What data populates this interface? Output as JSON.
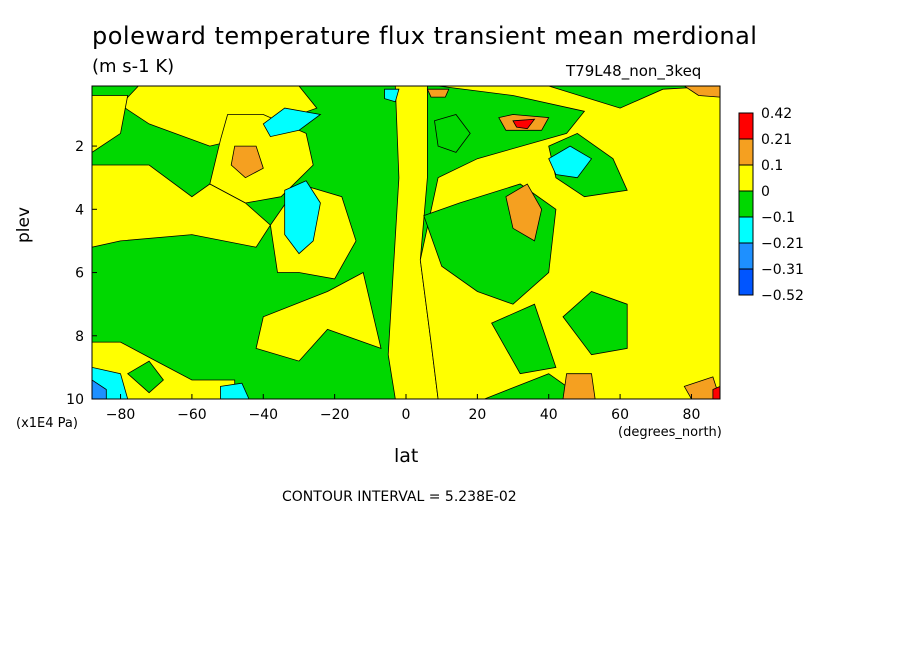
{
  "title": "poleward temperature flux transient mean merdional",
  "units": "(m s-1 K)",
  "dataset": "T79L48_non_3keq",
  "contour_note": "CONTOUR INTERVAL = 5.238E-02",
  "chart_data": {
    "type": "heatmap",
    "title": "poleward temperature flux transient mean merdional",
    "xlabel": "lat",
    "x_units": "(degrees_north)",
    "ylabel": "plev",
    "y_units": "(x1E4 Pa)",
    "xlim": [
      -88,
      88
    ],
    "ylim": [
      10,
      0.1
    ],
    "x_ticks": [
      -80,
      -60,
      -40,
      -20,
      0,
      20,
      40,
      60,
      80
    ],
    "y_ticks": [
      2,
      4,
      6,
      8,
      10
    ],
    "colorbar": {
      "labels": [
        "0.42",
        "0.21",
        "0.1",
        "0",
        "−0.1",
        "−0.21",
        "−0.31",
        "−0.52"
      ],
      "colors": [
        "#ff0000",
        "#f5a020",
        "#ffff00",
        "#00d800",
        "#00ffff",
        "#1e90ff",
        "#0055ff"
      ]
    },
    "regions": [
      {
        "color": "#ffff00",
        "points": [
          [
            -75,
            0.1
          ],
          [
            -30,
            0.1
          ],
          [
            -25,
            0.8
          ],
          [
            -35,
            1.2
          ],
          [
            -40,
            1.6
          ],
          [
            -55,
            2.0
          ],
          [
            -72,
            1.3
          ],
          [
            -80,
            0.7
          ]
        ]
      },
      {
        "color": "#ffff00",
        "points": [
          [
            -88,
            0.4
          ],
          [
            -78,
            0.4
          ],
          [
            -80,
            1.6
          ],
          [
            -88,
            2.2
          ]
        ]
      },
      {
        "color": "#ffff00",
        "points": [
          [
            -50,
            1.0
          ],
          [
            -40,
            1.0
          ],
          [
            -28,
            1.6
          ],
          [
            -26,
            2.6
          ],
          [
            -35,
            3.6
          ],
          [
            -45,
            3.8
          ],
          [
            -55,
            3.2
          ],
          [
            -52,
            1.8
          ]
        ]
      },
      {
        "color": "#ffff00",
        "points": [
          [
            -55,
            3.2
          ],
          [
            -45,
            3.8
          ],
          [
            -38,
            4.5
          ],
          [
            -42,
            5.2
          ],
          [
            -60,
            4.8
          ],
          [
            -80,
            5.0
          ],
          [
            -88,
            5.2
          ],
          [
            -88,
            2.6
          ],
          [
            -72,
            2.6
          ],
          [
            -60,
            3.6
          ]
        ]
      },
      {
        "color": "#ffff00",
        "points": [
          [
            -38,
            4.5
          ],
          [
            -30,
            3.2
          ],
          [
            -18,
            3.6
          ],
          [
            -14,
            5.0
          ],
          [
            -20,
            6.2
          ],
          [
            -30,
            6.0
          ],
          [
            -36,
            6.0
          ]
        ]
      },
      {
        "color": "#ffff00",
        "points": [
          [
            -22,
            6.6
          ],
          [
            -12,
            6.0
          ],
          [
            -7,
            8.4
          ],
          [
            -22,
            7.8
          ],
          [
            -30,
            8.8
          ],
          [
            -42,
            8.4
          ],
          [
            -40,
            7.4
          ]
        ]
      },
      {
        "color": "#ffff00",
        "points": [
          [
            -3,
            0.1
          ],
          [
            6,
            0.1
          ],
          [
            6,
            3.0
          ],
          [
            4,
            5.6
          ],
          [
            7,
            8.2
          ],
          [
            9,
            10
          ],
          [
            -3,
            10
          ],
          [
            -5,
            8.6
          ],
          [
            -2,
            3.0
          ]
        ]
      },
      {
        "color": "#ffff00",
        "points": [
          [
            9,
            0.1
          ],
          [
            40,
            0.1
          ],
          [
            60,
            0.8
          ],
          [
            72,
            0.2
          ],
          [
            88,
            0.1
          ],
          [
            88,
            10
          ],
          [
            50,
            10
          ],
          [
            40,
            9.2
          ],
          [
            22,
            10
          ],
          [
            9,
            10
          ],
          [
            7,
            8.2
          ],
          [
            4,
            5.6
          ],
          [
            9,
            3.0
          ],
          [
            20,
            2.4
          ],
          [
            45,
            1.6
          ],
          [
            50,
            0.9
          ],
          [
            30,
            0.4
          ]
        ]
      },
      {
        "color": "#ffff00",
        "points": [
          [
            -88,
            8.2
          ],
          [
            -80,
            8.2
          ],
          [
            -70,
            8.8
          ],
          [
            -60,
            9.4
          ],
          [
            -48,
            9.4
          ],
          [
            -48,
            10
          ],
          [
            -88,
            10
          ]
        ]
      },
      {
        "color": "#00d800",
        "points": [
          [
            5,
            4.2
          ],
          [
            15,
            3.8
          ],
          [
            32,
            3.2
          ],
          [
            42,
            4.0
          ],
          [
            40,
            6.0
          ],
          [
            30,
            7.0
          ],
          [
            20,
            6.6
          ],
          [
            10,
            5.8
          ]
        ]
      },
      {
        "color": "#00d800",
        "points": [
          [
            24,
            7.6
          ],
          [
            36,
            7.0
          ],
          [
            42,
            9.0
          ],
          [
            32,
            9.2
          ]
        ]
      },
      {
        "color": "#00d800",
        "points": [
          [
            44,
            7.4
          ],
          [
            52,
            6.6
          ],
          [
            62,
            7.0
          ],
          [
            62,
            8.4
          ],
          [
            52,
            8.6
          ]
        ]
      },
      {
        "color": "#00d800",
        "points": [
          [
            8,
            1.2
          ],
          [
            14,
            1.0
          ],
          [
            18,
            1.6
          ],
          [
            14,
            2.2
          ],
          [
            9,
            2.0
          ]
        ]
      },
      {
        "color": "#00d800",
        "points": [
          [
            40,
            2.0
          ],
          [
            48,
            1.6
          ],
          [
            58,
            2.4
          ],
          [
            62,
            3.4
          ],
          [
            50,
            3.6
          ],
          [
            42,
            3.0
          ]
        ]
      },
      {
        "color": "#00d800",
        "points": [
          [
            -78,
            9.2
          ],
          [
            -72,
            8.8
          ],
          [
            -68,
            9.4
          ],
          [
            -72,
            9.8
          ]
        ]
      },
      {
        "color": "#00ffff",
        "points": [
          [
            -34,
            3.4
          ],
          [
            -28,
            3.1
          ],
          [
            -24,
            3.8
          ],
          [
            -26,
            5.0
          ],
          [
            -30,
            5.4
          ],
          [
            -34,
            4.8
          ]
        ]
      },
      {
        "color": "#00ffff",
        "points": [
          [
            -40,
            1.3
          ],
          [
            -34,
            0.8
          ],
          [
            -24,
            1.0
          ],
          [
            -30,
            1.5
          ],
          [
            -38,
            1.7
          ]
        ]
      },
      {
        "color": "#00ffff",
        "points": [
          [
            -6,
            0.2
          ],
          [
            -2,
            0.2
          ],
          [
            -3,
            0.6
          ],
          [
            -6,
            0.5
          ]
        ]
      },
      {
        "color": "#00ffff",
        "points": [
          [
            40,
            2.4
          ],
          [
            46,
            2.0
          ],
          [
            52,
            2.4
          ],
          [
            48,
            3.0
          ],
          [
            42,
            2.9
          ]
        ]
      },
      {
        "color": "#00ffff",
        "points": [
          [
            -88,
            9.0
          ],
          [
            -80,
            9.2
          ],
          [
            -78,
            10
          ],
          [
            -88,
            10
          ]
        ]
      },
      {
        "color": "#00ffff",
        "points": [
          [
            -52,
            9.6
          ],
          [
            -46,
            9.5
          ],
          [
            -44,
            10
          ],
          [
            -52,
            10
          ]
        ]
      },
      {
        "color": "#1e90ff",
        "points": [
          [
            -88,
            9.4
          ],
          [
            -84,
            9.7
          ],
          [
            -84,
            10
          ],
          [
            -88,
            10
          ]
        ]
      },
      {
        "color": "#f5a020",
        "points": [
          [
            -48,
            2.0
          ],
          [
            -42,
            2.0
          ],
          [
            -40,
            2.7
          ],
          [
            -45,
            3.0
          ],
          [
            -49,
            2.6
          ]
        ]
      },
      {
        "color": "#f5a020",
        "points": [
          [
            28,
            3.6
          ],
          [
            34,
            3.2
          ],
          [
            38,
            4.0
          ],
          [
            36,
            5.0
          ],
          [
            30,
            4.6
          ]
        ]
      },
      {
        "color": "#f5a020",
        "points": [
          [
            26,
            1.1
          ],
          [
            30,
            1.0
          ],
          [
            40,
            1.1
          ],
          [
            38,
            1.5
          ],
          [
            28,
            1.5
          ]
        ]
      },
      {
        "color": "#f5a020",
        "points": [
          [
            45,
            9.2
          ],
          [
            52,
            9.2
          ],
          [
            53,
            10
          ],
          [
            44,
            10
          ]
        ]
      },
      {
        "color": "#f5a020",
        "points": [
          [
            6,
            0.2
          ],
          [
            12,
            0.2
          ],
          [
            11,
            0.45
          ],
          [
            7,
            0.45
          ]
        ]
      },
      {
        "color": "#f5a020",
        "points": [
          [
            78,
            9.6
          ],
          [
            86,
            9.3
          ],
          [
            88,
            10
          ],
          [
            80,
            10
          ]
        ]
      },
      {
        "color": "#f5a020",
        "points": [
          [
            78,
            0.1
          ],
          [
            88,
            0.1
          ],
          [
            88,
            0.45
          ],
          [
            82,
            0.4
          ]
        ]
      },
      {
        "color": "#ff0000",
        "points": [
          [
            30,
            1.2
          ],
          [
            36,
            1.15
          ],
          [
            34,
            1.45
          ],
          [
            31,
            1.4
          ]
        ]
      },
      {
        "color": "#ff0000",
        "points": [
          [
            86,
            9.7
          ],
          [
            88,
            9.6
          ],
          [
            88,
            10
          ],
          [
            86,
            10
          ]
        ]
      }
    ]
  }
}
